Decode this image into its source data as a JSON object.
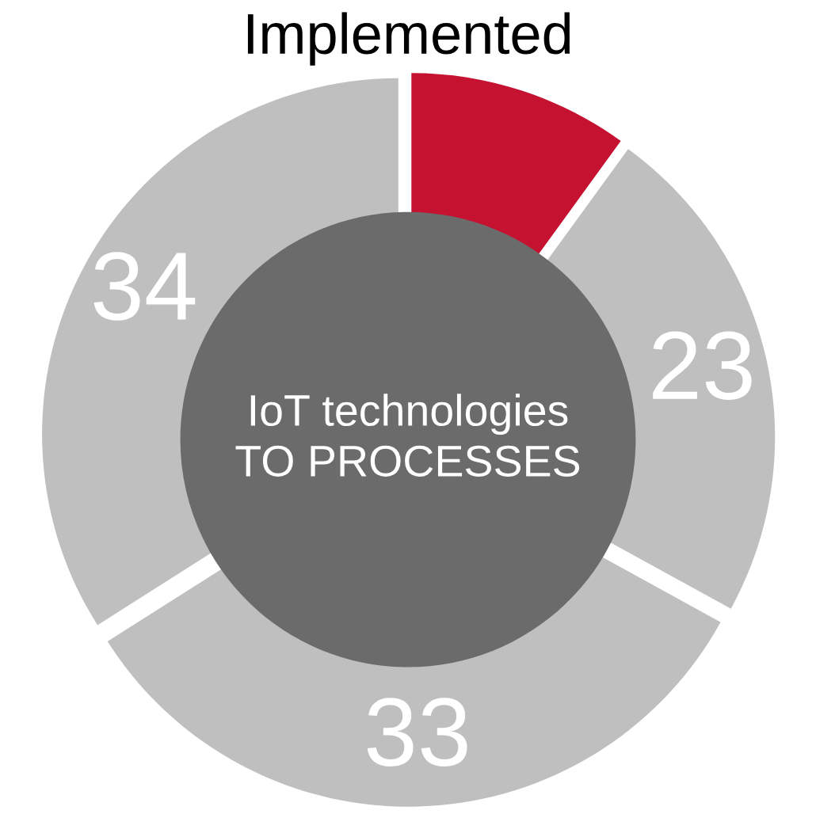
{
  "chart_data": {
    "type": "donut",
    "title": "Implemented",
    "categories": [
      null,
      null,
      null,
      null
    ],
    "values": [
      10,
      23,
      33,
      34
    ],
    "colors": [
      "#c41230",
      "#bfbfbf",
      "#bfbfbf",
      "#bfbfbf"
    ],
    "value_labels": [
      null,
      "23",
      "33",
      "34"
    ],
    "annotations": [
      "IoT technologies\nTO PROCESSES"
    ]
  }
}
